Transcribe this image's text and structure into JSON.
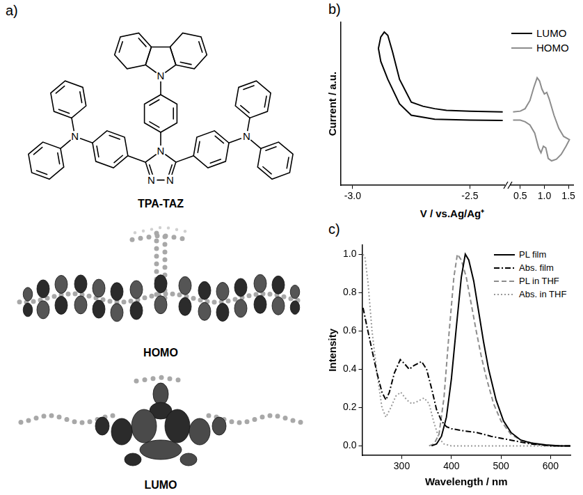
{
  "diagram": {
    "panel": "a)",
    "molecule": {
      "name": "TPA-TAZ",
      "atom_label": "N"
    },
    "orbitals": [
      "HOMO",
      "LUMO"
    ]
  },
  "chart_data": [
    {
      "panel": "b)",
      "type": "line",
      "x_label": "V / vs.Ag/Ag⁺",
      "y_label": "Current / a.u.",
      "xlim": [
        -3.05,
        -2.35
      ],
      "xticks": [
        {
          "value": -3,
          "label": "-3.0"
        },
        -2.5
      ],
      "x2lim": [
        0.3,
        1.6
      ],
      "x2ticks": [
        0.5,
        {
          "value": 1,
          "label": "1.0"
        },
        1.5
      ],
      "ylim": [
        0,
        10
      ],
      "yticks": [],
      "tick_labels": "x",
      "grid": false,
      "legend": "upper right",
      "series": [
        {
          "name": "LUMO",
          "color": "#000000",
          "line_style": "solid",
          "x": [
            -2.36,
            -2.5,
            -2.6,
            -2.65,
            -2.7,
            -2.75,
            -2.8,
            -2.83,
            -2.85,
            -2.865,
            -2.88,
            -2.89,
            -2.88,
            -2.85,
            -2.8,
            -2.75,
            -2.65,
            -2.5,
            -2.36
          ],
          "values": [
            4.5,
            4.55,
            4.6,
            4.7,
            4.85,
            5.1,
            6.5,
            8.2,
            9.2,
            9.4,
            9.1,
            8.4,
            7.6,
            6.5,
            5.0,
            4.3,
            4.05,
            4.0,
            3.98
          ]
        },
        {
          "name": "HOMO",
          "color": "#8c8c8c",
          "line_style": "solid",
          "axis": "x2",
          "x": [
            0.35,
            0.5,
            0.6,
            0.7,
            0.78,
            0.85,
            0.9,
            0.95,
            1.0,
            1.05,
            1.1,
            1.2,
            1.3,
            1.4,
            1.52,
            1.45,
            1.35,
            1.25,
            1.15,
            1.08,
            1.03,
            0.98,
            0.93,
            0.88,
            0.8,
            0.7,
            0.6,
            0.5,
            0.35
          ],
          "values": [
            4.5,
            4.55,
            4.7,
            5.2,
            6.0,
            6.6,
            6.4,
            5.9,
            5.6,
            5.7,
            5.3,
            4.3,
            3.5,
            3.0,
            2.8,
            2.4,
            1.9,
            1.6,
            1.5,
            1.65,
            2.3,
            2.4,
            2.0,
            2.3,
            3.2,
            3.7,
            3.9,
            4.0,
            4.0
          ]
        }
      ]
    },
    {
      "panel": "c)",
      "type": "line",
      "x_label": "Wavelength / nm",
      "y_label": "Intensity",
      "xlim": [
        220,
        640
      ],
      "xticks": [
        300,
        400,
        500,
        600
      ],
      "ylim": [
        -0.05,
        1.05
      ],
      "yticks": [
        {
          "value": 0,
          "label": "0.0"
        },
        0.2,
        0.4,
        0.6,
        0.8,
        {
          "value": 1,
          "label": "1.0"
        }
      ],
      "grid": false,
      "legend": "upper right",
      "series": [
        {
          "name": "PL film",
          "color": "#000000",
          "line_style": "solid",
          "x": [
            360,
            370,
            380,
            390,
            400,
            410,
            420,
            428,
            435,
            445,
            455,
            465,
            475,
            490,
            505,
            520,
            540,
            560,
            590,
            620,
            640
          ],
          "values": [
            0,
            0.01,
            0.05,
            0.15,
            0.35,
            0.62,
            0.88,
            1.0,
            0.97,
            0.86,
            0.7,
            0.54,
            0.4,
            0.24,
            0.13,
            0.07,
            0.03,
            0.015,
            0.005,
            0,
            0
          ]
        },
        {
          "name": "Abs. film",
          "color": "#000000",
          "line_style": "dashdot",
          "x": [
            222,
            230,
            240,
            250,
            260,
            268,
            275,
            285,
            297,
            305,
            315,
            325,
            340,
            350,
            360,
            370,
            380,
            390,
            400,
            420,
            450,
            480,
            520,
            560,
            600,
            640
          ],
          "values": [
            0.72,
            0.62,
            0.5,
            0.38,
            0.28,
            0.24,
            0.28,
            0.38,
            0.45,
            0.43,
            0.4,
            0.42,
            0.44,
            0.4,
            0.3,
            0.19,
            0.13,
            0.1,
            0.09,
            0.08,
            0.07,
            0.05,
            0.03,
            0.01,
            0,
            0
          ]
        },
        {
          "name": "PL in THF",
          "color": "#8c8c8c",
          "line_style": "dashed",
          "x": [
            355,
            365,
            375,
            385,
            395,
            405,
            412,
            420,
            430,
            440,
            450,
            460,
            470,
            485,
            500,
            520,
            540,
            570,
            600,
            640
          ],
          "values": [
            0,
            0.01,
            0.06,
            0.25,
            0.58,
            0.88,
            1.0,
            0.97,
            0.88,
            0.74,
            0.6,
            0.47,
            0.36,
            0.22,
            0.13,
            0.06,
            0.03,
            0.01,
            0,
            0
          ]
        },
        {
          "name": "Abs. in THF",
          "color": "#999999",
          "line_style": "dotted",
          "x": [
            222,
            226,
            232,
            240,
            250,
            260,
            268,
            278,
            288,
            298,
            310,
            320,
            330,
            345,
            355,
            365,
            375,
            385,
            400,
            420,
            460,
            520,
            640
          ],
          "values": [
            1.0,
            0.98,
            0.85,
            0.6,
            0.38,
            0.2,
            0.15,
            0.2,
            0.26,
            0.28,
            0.24,
            0.22,
            0.23,
            0.25,
            0.22,
            0.12,
            0.04,
            0.01,
            0,
            0,
            0,
            0,
            0
          ]
        }
      ]
    }
  ]
}
